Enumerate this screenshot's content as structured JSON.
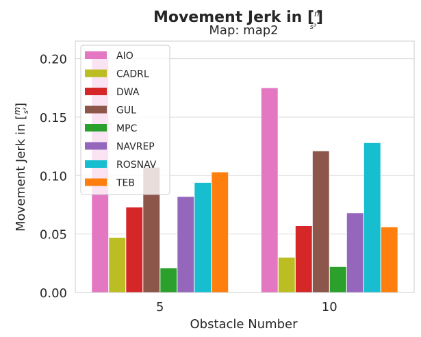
{
  "chart_data": {
    "type": "bar",
    "title": "Movement Jerk in [m/s³]",
    "subtitle": "Map: map2",
    "xlabel": "Obstacle Number",
    "ylabel": "Movement Jerk in [m/s³]",
    "categories": [
      "5",
      "10"
    ],
    "ylim": [
      0,
      0.215
    ],
    "yticks": [
      0.0,
      0.05,
      0.1,
      0.15,
      0.2
    ],
    "ytick_labels": [
      "0.00",
      "0.05",
      "0.10",
      "0.15",
      "0.20"
    ],
    "grid": true,
    "legend_position": "top-left",
    "series": [
      {
        "name": "AIO",
        "color": "#e377c2",
        "values": [
          0.2,
          0.175
        ]
      },
      {
        "name": "CADRL",
        "color": "#bcbd22",
        "values": [
          0.047,
          0.03
        ]
      },
      {
        "name": "DWA",
        "color": "#d62728",
        "values": [
          0.073,
          0.057
        ]
      },
      {
        "name": "GUL",
        "color": "#8c564b",
        "values": [
          0.107,
          0.121
        ]
      },
      {
        "name": "MPC",
        "color": "#2ca02c",
        "values": [
          0.021,
          0.022
        ]
      },
      {
        "name": "NAVREP",
        "color": "#9467bd",
        "values": [
          0.082,
          0.068
        ]
      },
      {
        "name": "ROSNAV",
        "color": "#17becf",
        "values": [
          0.094,
          0.128
        ]
      },
      {
        "name": "TEB",
        "color": "#ff7f0e",
        "values": [
          0.103,
          0.056
        ]
      }
    ]
  }
}
